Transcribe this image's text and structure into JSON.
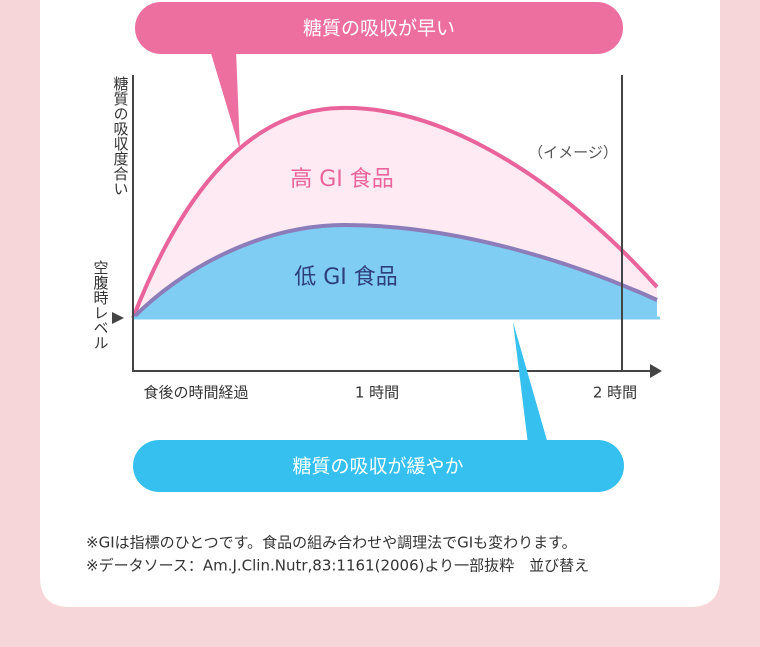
{
  "callouts": {
    "fast": "糖質の吸収が早い",
    "slow": "糖質の吸収が緩やか"
  },
  "graph": {
    "y_axis_label": "糖質の吸収度合い",
    "baseline_label": "空腹時レベル",
    "image_note": "（イメージ）",
    "high_gi": "高 GI 食品",
    "low_gi": "低 GI 食品",
    "x_labels": [
      "食後の時間経過",
      "1 時間",
      "2 時間"
    ]
  },
  "notes": [
    "※GIは指標のひとつです。食品の組み合わせや調理法でGIも変わります。",
    "※データソース：Am.J.Clin.Nutr,83:1161(2006)より一部抜粋　並び替え"
  ]
}
